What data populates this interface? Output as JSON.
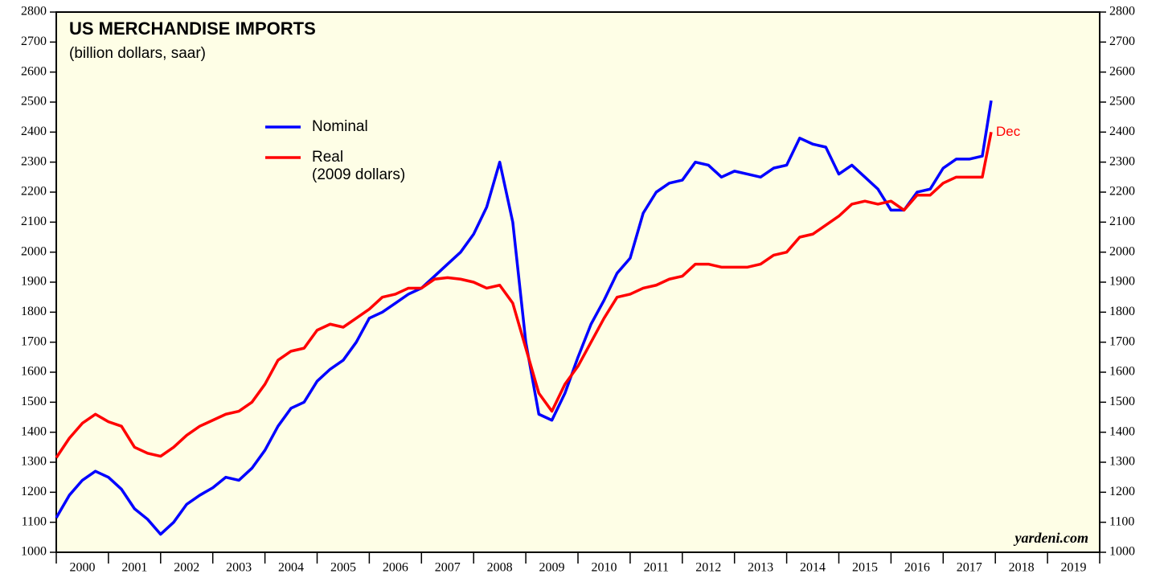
{
  "chart_data": {
    "type": "line",
    "title": "US MERCHANDISE IMPORTS",
    "subtitle": "(billion dollars, saar)",
    "end_label": "Dec",
    "source": "yardeni.com",
    "x": [
      2000,
      2000.25,
      2000.5,
      2000.75,
      2001,
      2001.25,
      2001.5,
      2001.75,
      2002,
      2002.25,
      2002.5,
      2002.75,
      2003,
      2003.25,
      2003.5,
      2003.75,
      2004,
      2004.25,
      2004.5,
      2004.75,
      2005,
      2005.25,
      2005.5,
      2005.75,
      2006,
      2006.25,
      2006.5,
      2006.75,
      2007,
      2007.25,
      2007.5,
      2007.75,
      2008,
      2008.25,
      2008.5,
      2008.75,
      2009,
      2009.25,
      2009.5,
      2009.75,
      2010,
      2010.25,
      2010.5,
      2010.75,
      2011,
      2011.25,
      2011.5,
      2011.75,
      2012,
      2012.25,
      2012.5,
      2012.75,
      2013,
      2013.25,
      2013.5,
      2013.75,
      2014,
      2014.25,
      2014.5,
      2014.75,
      2015,
      2015.25,
      2015.5,
      2015.75,
      2016,
      2016.25,
      2016.5,
      2016.75,
      2017,
      2017.25,
      2017.5,
      2017.75,
      2017.92
    ],
    "series": [
      {
        "name": "Nominal",
        "color": "#0000ff",
        "values": [
          1115,
          1190,
          1240,
          1270,
          1250,
          1210,
          1145,
          1110,
          1060,
          1100,
          1160,
          1190,
          1215,
          1250,
          1240,
          1280,
          1340,
          1420,
          1480,
          1500,
          1570,
          1610,
          1640,
          1700,
          1780,
          1800,
          1830,
          1860,
          1880,
          1920,
          1960,
          2000,
          2060,
          2150,
          2300,
          2100,
          1700,
          1460,
          1440,
          1530,
          1650,
          1760,
          1840,
          1930,
          1980,
          2130,
          2200,
          2230,
          2240,
          2300,
          2290,
          2250,
          2270,
          2260,
          2250,
          2280,
          2290,
          2380,
          2360,
          2350,
          2260,
          2290,
          2250,
          2210,
          2140,
          2140,
          2200,
          2210,
          2280,
          2310,
          2310,
          2320,
          2505
        ]
      },
      {
        "name": "Real\n(2009 dollars)",
        "color": "#ff0000",
        "values": [
          1315,
          1380,
          1430,
          1460,
          1435,
          1420,
          1350,
          1330,
          1320,
          1350,
          1390,
          1420,
          1440,
          1460,
          1470,
          1500,
          1560,
          1640,
          1670,
          1680,
          1740,
          1760,
          1750,
          1780,
          1810,
          1850,
          1860,
          1880,
          1880,
          1910,
          1915,
          1910,
          1900,
          1880,
          1890,
          1830,
          1680,
          1530,
          1470,
          1560,
          1620,
          1700,
          1780,
          1850,
          1860,
          1880,
          1890,
          1910,
          1920,
          1960,
          1960,
          1950,
          1950,
          1950,
          1960,
          1990,
          2000,
          2050,
          2060,
          2090,
          2120,
          2160,
          2170,
          2160,
          2170,
          2140,
          2190,
          2190,
          2230,
          2250,
          2250,
          2250,
          2400
        ]
      }
    ],
    "xlim": [
      2000,
      2020
    ],
    "xticks": [
      2000,
      2001,
      2002,
      2003,
      2004,
      2005,
      2006,
      2007,
      2008,
      2009,
      2010,
      2011,
      2012,
      2013,
      2014,
      2015,
      2016,
      2017,
      2018,
      2019,
      2020
    ],
    "year_labels": [
      2000,
      2001,
      2002,
      2003,
      2004,
      2005,
      2006,
      2007,
      2008,
      2009,
      2010,
      2011,
      2012,
      2013,
      2014,
      2015,
      2016,
      2017,
      2018,
      2019
    ],
    "ylim": [
      1000,
      2800
    ],
    "yticks": [
      1000,
      1100,
      1200,
      1300,
      1400,
      1500,
      1600,
      1700,
      1800,
      1900,
      2000,
      2100,
      2200,
      2300,
      2400,
      2500,
      2600,
      2700,
      2800
    ],
    "y2lim": [
      1000,
      2800
    ],
    "y2ticks": [
      1000,
      1100,
      1200,
      1300,
      1400,
      1500,
      1600,
      1700,
      1800,
      1900,
      2000,
      2100,
      2200,
      2300,
      2400,
      2500,
      2600,
      2700,
      2800
    ]
  }
}
